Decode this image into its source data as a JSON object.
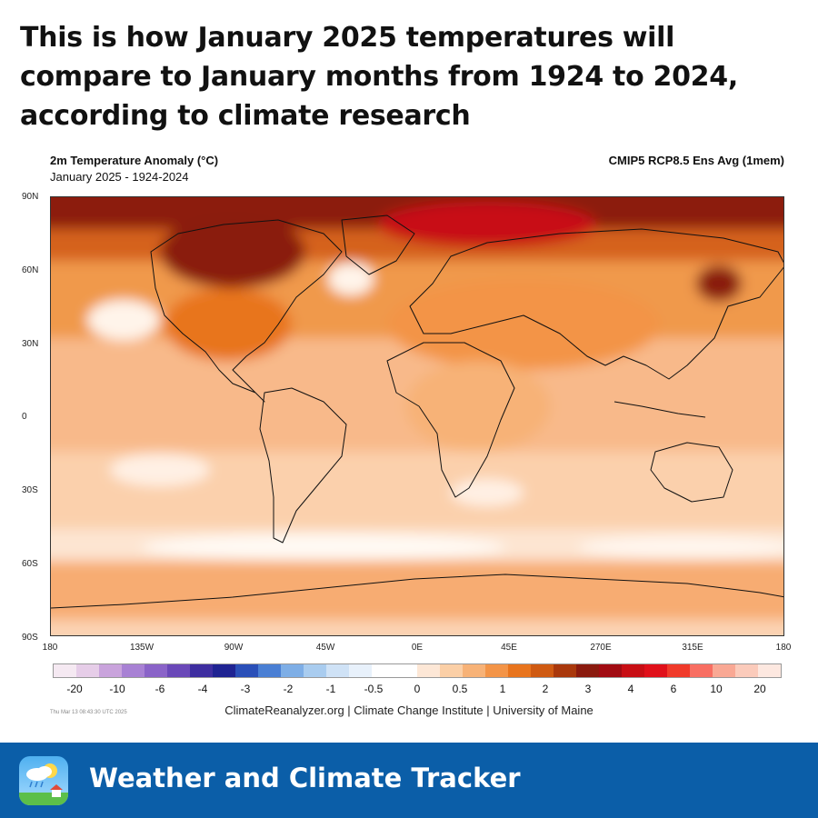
{
  "headline": "This is how January 2025 temperatures will compare to January months from 1924 to 2024, according to climate research",
  "map": {
    "title": "2m Temperature Anomaly (°C)",
    "subtitle": "January 2025 - 1924-2024",
    "model": "CMIP5 RCP8.5 Ens Avg (1mem)",
    "lat_labels": [
      "90N",
      "60N",
      "30N",
      "0",
      "30S",
      "60S",
      "90S"
    ],
    "lon_labels": [
      "180",
      "135W",
      "90W",
      "45W",
      "0E",
      "45E",
      "270E",
      "315E",
      "180"
    ]
  },
  "colorbar": {
    "colors": [
      "#f5e9f2",
      "#e6cde8",
      "#c9a3dc",
      "#a881d4",
      "#8a63c8",
      "#6a48b8",
      "#3e2ea0",
      "#1f2392",
      "#2a4fb8",
      "#4a7fd4",
      "#7eaee6",
      "#a9ccef",
      "#cfe2f6",
      "#e8f1fb",
      "#ffffff",
      "#ffffff",
      "#fde7d6",
      "#fbcfa6",
      "#f7b277",
      "#f39447",
      "#e8741d",
      "#cf5a12",
      "#a9380c",
      "#8a1a0e",
      "#a10b12",
      "#c80e14",
      "#e0101a",
      "#f03a2a",
      "#f86e62",
      "#f9a894",
      "#fbcbbb",
      "#fde8e0"
    ],
    "labels": [
      "-20",
      "-10",
      "-6",
      "-4",
      "-3",
      "-2",
      "-1",
      "-0.5",
      "0",
      "0.5",
      "1",
      "2",
      "3",
      "4",
      "6",
      "10",
      "20"
    ]
  },
  "timestamp": "Thu Mar 13 08:43:30 UTC 2025",
  "credit": "ClimateReanalyzer.org | Climate Change Institute | University of Maine",
  "footer": {
    "title": "Weather and Climate Tracker",
    "icon": "weather-app-icon"
  }
}
